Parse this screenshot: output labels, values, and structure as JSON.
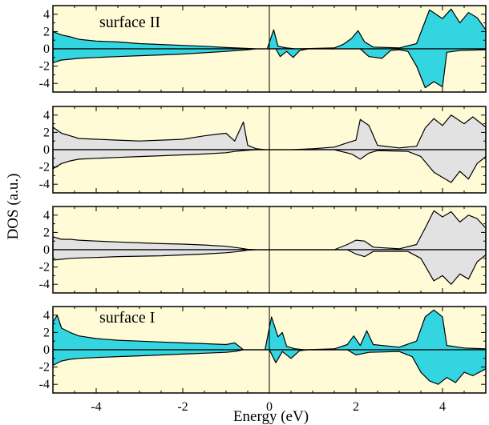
{
  "chart_data": {
    "type": "area",
    "ylabel": "DOS (a.u.)",
    "xlabel": "Energy (eV)",
    "xlim": [
      -5,
      5
    ],
    "ylim": [
      -5,
      5
    ],
    "x_ticks": [
      "-4",
      "-2",
      "0",
      "2",
      "4"
    ],
    "x_tick_values": [
      -4,
      -2,
      0,
      2,
      4
    ],
    "y_ticks": [
      "4",
      "2",
      "0",
      "-2",
      "-4"
    ],
    "y_tick_values": [
      4,
      2,
      0,
      -2,
      -4
    ],
    "fermi_level": 0,
    "background_color": "#fffbd6",
    "panels": [
      {
        "label": "surface II",
        "fill_color": "#33d6e0",
        "up": [
          [
            -5,
            2
          ],
          [
            -4.8,
            1.6
          ],
          [
            -4.6,
            1.4
          ],
          [
            -4.4,
            1.1
          ],
          [
            -4,
            0.9
          ],
          [
            -3.5,
            0.8
          ],
          [
            -3,
            0.6
          ],
          [
            -2.5,
            0.5
          ],
          [
            -2,
            0.4
          ],
          [
            -1.5,
            0.3
          ],
          [
            -1,
            0.15
          ],
          [
            -0.5,
            0.05
          ],
          [
            -0.3,
            0
          ],
          [
            -0.05,
            0
          ],
          [
            0.1,
            2.2
          ],
          [
            0.2,
            0.3
          ],
          [
            0.4,
            0.1
          ],
          [
            0.6,
            0
          ],
          [
            1.5,
            0.1
          ],
          [
            1.7,
            0.5
          ],
          [
            1.9,
            1.2
          ],
          [
            2.05,
            2.1
          ],
          [
            2.2,
            0.8
          ],
          [
            2.4,
            0.2
          ],
          [
            3.0,
            0.1
          ],
          [
            3.4,
            0.6
          ],
          [
            3.7,
            4.5
          ],
          [
            4.0,
            3.5
          ],
          [
            4.2,
            4.6
          ],
          [
            4.4,
            3.0
          ],
          [
            4.6,
            4.2
          ],
          [
            4.8,
            3.6
          ],
          [
            5,
            2.2
          ]
        ],
        "down": [
          [
            -5,
            -1.6
          ],
          [
            -4.8,
            -1.3
          ],
          [
            -4.6,
            -1.2
          ],
          [
            -4.4,
            -1.1
          ],
          [
            -4,
            -1.0
          ],
          [
            -3.5,
            -0.9
          ],
          [
            -3,
            -0.8
          ],
          [
            -2.5,
            -0.7
          ],
          [
            -2,
            -0.6
          ],
          [
            -1.5,
            -0.45
          ],
          [
            -1,
            -0.3
          ],
          [
            -0.5,
            -0.1
          ],
          [
            -0.3,
            0
          ],
          [
            0.15,
            0
          ],
          [
            0.25,
            -0.9
          ],
          [
            0.4,
            -0.3
          ],
          [
            0.55,
            -1.0
          ],
          [
            0.7,
            -0.2
          ],
          [
            0.9,
            0
          ],
          [
            2.1,
            0
          ],
          [
            2.3,
            -0.9
          ],
          [
            2.6,
            -1.1
          ],
          [
            2.8,
            -0.2
          ],
          [
            3.0,
            -0.1
          ],
          [
            3.2,
            -0.3
          ],
          [
            3.4,
            -2.0
          ],
          [
            3.6,
            -4.5
          ],
          [
            3.8,
            -3.8
          ],
          [
            4.0,
            -4.4
          ],
          [
            4.1,
            -0.4
          ],
          [
            4.4,
            -0.2
          ],
          [
            5,
            -0.1
          ]
        ]
      },
      {
        "label": "",
        "fill_color": "#e2e2e2",
        "up": [
          [
            -5,
            2.6
          ],
          [
            -4.8,
            1.9
          ],
          [
            -4.6,
            1.6
          ],
          [
            -4.4,
            1.3
          ],
          [
            -4,
            1.2
          ],
          [
            -3.5,
            1.1
          ],
          [
            -3,
            1.0
          ],
          [
            -2.5,
            1.1
          ],
          [
            -2,
            1.2
          ],
          [
            -1.5,
            1.6
          ],
          [
            -1.2,
            1.8
          ],
          [
            -1,
            1.9
          ],
          [
            -0.8,
            1.0
          ],
          [
            -0.6,
            3.2
          ],
          [
            -0.5,
            0.5
          ],
          [
            -0.3,
            0.1
          ],
          [
            -0.1,
            0
          ],
          [
            0.5,
            0
          ],
          [
            1.0,
            0.1
          ],
          [
            1.5,
            0.3
          ],
          [
            1.8,
            0.8
          ],
          [
            2.0,
            1.1
          ],
          [
            2.1,
            3.5
          ],
          [
            2.3,
            2.8
          ],
          [
            2.5,
            0.5
          ],
          [
            3.0,
            0.2
          ],
          [
            3.4,
            0.4
          ],
          [
            3.6,
            2.5
          ],
          [
            3.8,
            3.6
          ],
          [
            4.0,
            2.8
          ],
          [
            4.2,
            4.0
          ],
          [
            4.5,
            3.0
          ],
          [
            4.7,
            3.8
          ],
          [
            5,
            2.6
          ]
        ],
        "down": [
          [
            -5,
            -2.2
          ],
          [
            -4.8,
            -1.6
          ],
          [
            -4.6,
            -1.3
          ],
          [
            -4.4,
            -1.1
          ],
          [
            -4,
            -1.0
          ],
          [
            -3.5,
            -0.9
          ],
          [
            -3,
            -0.8
          ],
          [
            -2.5,
            -0.7
          ],
          [
            -2,
            -0.6
          ],
          [
            -1.5,
            -0.5
          ],
          [
            -1,
            -0.35
          ],
          [
            -0.8,
            -0.2
          ],
          [
            -0.6,
            -0.1
          ],
          [
            -0.3,
            0
          ],
          [
            1.5,
            0
          ],
          [
            1.9,
            -0.5
          ],
          [
            2.1,
            -1.1
          ],
          [
            2.3,
            -0.4
          ],
          [
            2.5,
            -0.1
          ],
          [
            3.2,
            -0.2
          ],
          [
            3.5,
            -0.8
          ],
          [
            3.8,
            -2.6
          ],
          [
            4.0,
            -3.2
          ],
          [
            4.2,
            -3.8
          ],
          [
            4.4,
            -2.5
          ],
          [
            4.6,
            -3.4
          ],
          [
            4.8,
            -1.6
          ],
          [
            5,
            -0.8
          ]
        ]
      },
      {
        "label": "",
        "fill_color": "#e2e2e2",
        "up": [
          [
            -5,
            1.5
          ],
          [
            -4.8,
            1.2
          ],
          [
            -4.6,
            1.2
          ],
          [
            -4.4,
            1.1
          ],
          [
            -4,
            1.0
          ],
          [
            -3.5,
            0.9
          ],
          [
            -3,
            0.8
          ],
          [
            -2.5,
            0.7
          ],
          [
            -2,
            0.65
          ],
          [
            -1.5,
            0.55
          ],
          [
            -1,
            0.4
          ],
          [
            -0.7,
            0.2
          ],
          [
            -0.5,
            0.05
          ],
          [
            -0.3,
            0
          ],
          [
            1.5,
            0
          ],
          [
            1.8,
            0.6
          ],
          [
            2.0,
            1.1
          ],
          [
            2.2,
            1.0
          ],
          [
            2.4,
            0.3
          ],
          [
            3.0,
            0.1
          ],
          [
            3.4,
            0.6
          ],
          [
            3.6,
            2.5
          ],
          [
            3.8,
            4.5
          ],
          [
            4.0,
            3.8
          ],
          [
            4.2,
            4.4
          ],
          [
            4.4,
            3.2
          ],
          [
            4.6,
            4.0
          ],
          [
            4.8,
            3.6
          ],
          [
            5,
            2.5
          ]
        ],
        "down": [
          [
            -5,
            -1.2
          ],
          [
            -4.8,
            -1.1
          ],
          [
            -4.6,
            -1.0
          ],
          [
            -4.4,
            -0.95
          ],
          [
            -4,
            -0.9
          ],
          [
            -3.5,
            -0.8
          ],
          [
            -3,
            -0.75
          ],
          [
            -2.5,
            -0.7
          ],
          [
            -2,
            -0.6
          ],
          [
            -1.5,
            -0.5
          ],
          [
            -1,
            -0.35
          ],
          [
            -0.7,
            -0.2
          ],
          [
            -0.5,
            -0.05
          ],
          [
            -0.3,
            0
          ],
          [
            1.8,
            0
          ],
          [
            2.0,
            -0.5
          ],
          [
            2.2,
            -0.8
          ],
          [
            2.4,
            -0.2
          ],
          [
            3.2,
            -0.2
          ],
          [
            3.5,
            -1.0
          ],
          [
            3.8,
            -3.6
          ],
          [
            4.0,
            -3.0
          ],
          [
            4.2,
            -4.0
          ],
          [
            4.4,
            -2.8
          ],
          [
            4.6,
            -3.4
          ],
          [
            4.8,
            -1.4
          ],
          [
            5,
            -0.6
          ]
        ]
      },
      {
        "label": "surface I",
        "fill_color": "#33d6e0",
        "up": [
          [
            -5,
            3.2
          ],
          [
            -4.9,
            4.0
          ],
          [
            -4.8,
            2.5
          ],
          [
            -4.6,
            2.0
          ],
          [
            -4.4,
            1.6
          ],
          [
            -4,
            1.3
          ],
          [
            -3.5,
            1.1
          ],
          [
            -3,
            1.0
          ],
          [
            -2.5,
            0.9
          ],
          [
            -2,
            0.8
          ],
          [
            -1.5,
            0.7
          ],
          [
            -1,
            0.6
          ],
          [
            -0.8,
            0.8
          ],
          [
            -0.6,
            0
          ],
          [
            -0.1,
            0
          ],
          [
            0.05,
            3.8
          ],
          [
            0.2,
            1.5
          ],
          [
            0.3,
            2.0
          ],
          [
            0.4,
            0.4
          ],
          [
            0.6,
            0.1
          ],
          [
            0.8,
            0
          ],
          [
            1.5,
            0.1
          ],
          [
            1.8,
            0.6
          ],
          [
            1.95,
            1.6
          ],
          [
            2.1,
            0.5
          ],
          [
            2.25,
            2.2
          ],
          [
            2.4,
            0.6
          ],
          [
            3.0,
            0.3
          ],
          [
            3.4,
            1.0
          ],
          [
            3.6,
            3.8
          ],
          [
            3.8,
            4.6
          ],
          [
            4.0,
            3.8
          ],
          [
            4.1,
            0.5
          ],
          [
            4.5,
            0.2
          ],
          [
            5,
            0.1
          ]
        ],
        "down": [
          [
            -5,
            -1.8
          ],
          [
            -4.8,
            -1.3
          ],
          [
            -4.6,
            -1.1
          ],
          [
            -4.4,
            -1.0
          ],
          [
            -4,
            -0.9
          ],
          [
            -3.5,
            -0.8
          ],
          [
            -3,
            -0.7
          ],
          [
            -2.5,
            -0.6
          ],
          [
            -2,
            -0.5
          ],
          [
            -1.5,
            -0.4
          ],
          [
            -1,
            -0.3
          ],
          [
            -0.8,
            -0.2
          ],
          [
            -0.6,
            0
          ],
          [
            0,
            0
          ],
          [
            0.15,
            -1.5
          ],
          [
            0.3,
            -0.2
          ],
          [
            0.5,
            -1.0
          ],
          [
            0.7,
            -0.1
          ],
          [
            0.9,
            0
          ],
          [
            1.8,
            0
          ],
          [
            2.0,
            -0.6
          ],
          [
            2.3,
            -0.3
          ],
          [
            3.0,
            -0.2
          ],
          [
            3.3,
            -0.8
          ],
          [
            3.5,
            -2.6
          ],
          [
            3.7,
            -3.6
          ],
          [
            3.9,
            -4.0
          ],
          [
            4.1,
            -3.2
          ],
          [
            4.3,
            -3.8
          ],
          [
            4.5,
            -2.6
          ],
          [
            4.7,
            -3.0
          ],
          [
            5,
            -2.2
          ]
        ]
      }
    ]
  }
}
